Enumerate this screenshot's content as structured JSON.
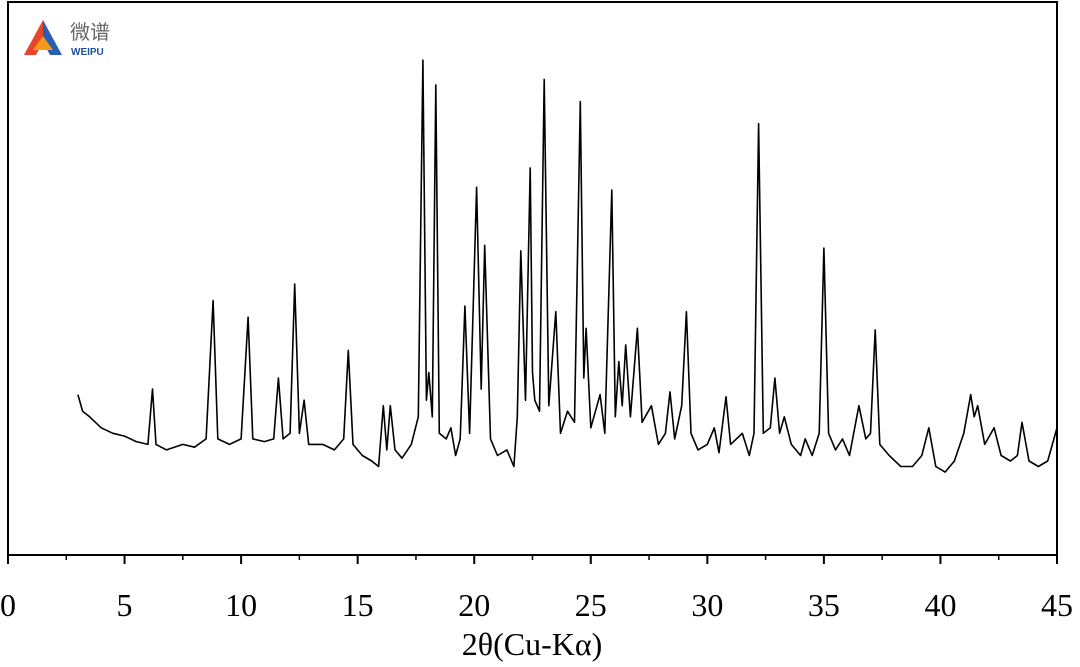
{
  "logo": {
    "cn": "微谱",
    "en": "WEIPU"
  },
  "chart_data": {
    "type": "line",
    "xlabel": "2θ(Cu-Kα)",
    "color": "#000000",
    "xlim": [
      0,
      45
    ],
    "xticks": [
      0,
      5,
      10,
      15,
      20,
      25,
      30,
      35,
      40,
      45
    ],
    "xminorticks": [
      2.5,
      7.5,
      12.5,
      17.5,
      22.5,
      27.5,
      32.5,
      37.5,
      42.5
    ],
    "ylim": [
      0,
      100
    ],
    "x": [
      3.0,
      3.2,
      3.5,
      4.0,
      4.5,
      5.0,
      5.5,
      6.0,
      6.2,
      6.35,
      6.8,
      7.5,
      8.0,
      8.5,
      8.8,
      9.0,
      9.5,
      10.0,
      10.3,
      10.5,
      11.0,
      11.4,
      11.6,
      11.8,
      12.1,
      12.3,
      12.5,
      12.7,
      12.9,
      13.5,
      14.0,
      14.4,
      14.6,
      14.8,
      15.2,
      15.6,
      15.9,
      16.1,
      16.25,
      16.4,
      16.6,
      16.9,
      17.3,
      17.6,
      17.8,
      17.95,
      18.05,
      18.2,
      18.35,
      18.5,
      18.8,
      19.0,
      19.2,
      19.4,
      19.6,
      19.8,
      20.1,
      20.3,
      20.45,
      20.7,
      21.0,
      21.4,
      21.7,
      21.85,
      22.0,
      22.2,
      22.4,
      22.5,
      22.6,
      22.8,
      23.0,
      23.2,
      23.5,
      23.7,
      24.0,
      24.3,
      24.55,
      24.7,
      24.8,
      25.0,
      25.4,
      25.6,
      25.9,
      26.05,
      26.2,
      26.35,
      26.5,
      26.7,
      27.0,
      27.2,
      27.6,
      27.9,
      28.2,
      28.4,
      28.6,
      28.9,
      29.1,
      29.3,
      29.6,
      30.0,
      30.3,
      30.5,
      30.8,
      31.0,
      31.5,
      31.8,
      32.0,
      32.2,
      32.4,
      32.7,
      32.9,
      33.1,
      33.3,
      33.6,
      34.0,
      34.2,
      34.5,
      34.8,
      35.0,
      35.2,
      35.5,
      35.8,
      36.1,
      36.5,
      36.8,
      37.0,
      37.2,
      37.4,
      37.8,
      38.3,
      38.8,
      39.2,
      39.5,
      39.8,
      40.2,
      40.6,
      41.0,
      41.3,
      41.45,
      41.6,
      41.9,
      42.3,
      42.6,
      43.0,
      43.3,
      43.5,
      43.8,
      44.2,
      44.6,
      45.0
    ],
    "values": [
      29,
      26,
      25,
      23,
      22,
      21.5,
      20.5,
      20,
      30,
      20,
      19,
      20,
      19.5,
      21,
      46,
      21,
      20,
      21,
      43,
      21,
      20.5,
      21,
      32,
      21,
      22,
      49,
      22,
      28,
      20,
      20,
      19,
      21,
      37,
      20,
      18,
      17,
      16,
      27,
      19,
      27,
      19,
      17.5,
      20,
      25,
      89.5,
      28,
      33,
      25,
      85,
      22,
      21,
      23,
      18,
      21,
      45,
      22,
      66.5,
      30,
      56,
      21,
      18,
      19,
      16,
      25,
      55,
      28,
      70,
      33,
      28,
      26,
      86,
      27,
      44,
      22,
      26,
      24,
      82,
      32,
      41,
      23,
      29,
      22,
      66,
      25,
      35,
      27,
      38,
      25,
      41,
      24,
      27,
      20,
      22,
      29.5,
      21,
      27,
      44,
      22,
      19,
      20,
      23,
      18.5,
      28.6,
      20,
      22,
      18,
      22,
      78,
      22,
      23,
      32,
      22,
      25,
      20,
      18,
      21,
      18,
      22,
      55.5,
      22,
      19,
      21,
      18,
      27,
      21,
      22,
      40.7,
      20,
      18,
      16,
      16,
      18,
      23,
      16,
      15,
      17,
      22,
      29,
      25,
      27,
      20,
      23,
      18,
      17,
      18,
      24,
      17,
      16,
      17,
      23
    ]
  }
}
